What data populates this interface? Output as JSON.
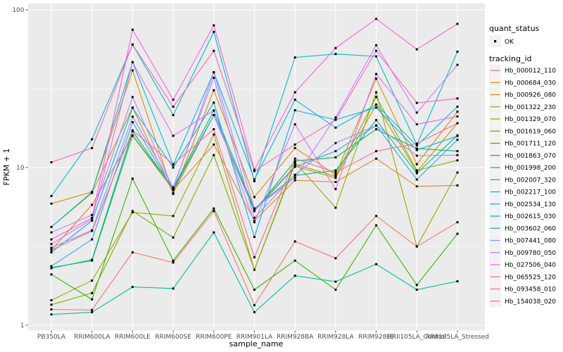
{
  "chart_data": {
    "type": "line",
    "title": "",
    "xlabel": "sample_name",
    "ylabel": "FPKM + 1",
    "y_scale": "log10",
    "ylim": [
      1,
      100
    ],
    "y_ticks": [
      1,
      10,
      100
    ],
    "y_minor_breaks": [
      3.1623,
      31.623
    ],
    "grid": true,
    "panel_bg": "#EBEBEB",
    "grid_color": "#FFFFFF",
    "axis_text_color": "#4D4D4D",
    "axis_title_color": "#000000",
    "point_color": "#000000",
    "legend_key_bg": "#F2F2F2",
    "legend_position": "right",
    "categories": [
      "PB350LA",
      "RRIM600LA",
      "RRIM600LE",
      "RRIM600SE",
      "RRIM600PE",
      "RRIM901LA",
      "RRIM928BA",
      "RRIM928LA",
      "RRIM928LE",
      "RRII105LA_Control",
      "RRII105LA_Stressed"
    ],
    "legend": {
      "quant_status_title": "quant_status",
      "quant_entries": [
        "OK"
      ],
      "tracking_title": "tracking_id"
    },
    "series": [
      {
        "name": "Hb_000012_110",
        "color": "#F8766D",
        "values": [
          1.26,
          1.25,
          2.9,
          2.5,
          5.3,
          1.34,
          3.4,
          2.66,
          4.93,
          3.16,
          4.5
        ]
      },
      {
        "name": "Hb_000684_030",
        "color": "#EA8331",
        "values": [
          3.0,
          5.8,
          15.9,
          7.2,
          14.0,
          4.6,
          8.3,
          8.1,
          11.4,
          7.6,
          7.7
        ]
      },
      {
        "name": "Hb_000926_080",
        "color": "#D89000",
        "values": [
          5.9,
          7.0,
          41.3,
          6.8,
          30.9,
          6.5,
          13.3,
          9.0,
          36.6,
          10.5,
          22.6
        ]
      },
      {
        "name": "Hb_001322_230",
        "color": "#C09B00",
        "values": [
          4.2,
          6.9,
          24.0,
          6.9,
          21.5,
          5.4,
          10.2,
          8.6,
          25.1,
          9.4,
          19.1
        ]
      },
      {
        "name": "Hb_001329_070",
        "color": "#A3A500",
        "values": [
          1.44,
          1.92,
          5.2,
          4.93,
          16.2,
          2.25,
          10.8,
          5.56,
          30.0,
          3.16,
          9.3
        ]
      },
      {
        "name": "Hb_001619_060",
        "color": "#7CAE00",
        "values": [
          1.35,
          1.6,
          5.3,
          3.6,
          12.0,
          2.25,
          10.5,
          8.8,
          28.0,
          9.6,
          11.1
        ]
      },
      {
        "name": "Hb_001711_120",
        "color": "#39B600",
        "values": [
          2.1,
          1.46,
          8.5,
          2.57,
          5.5,
          1.68,
          2.57,
          1.68,
          4.3,
          1.8,
          3.8
        ]
      },
      {
        "name": "Hb_001863_070",
        "color": "#00BB4E",
        "values": [
          2.3,
          2.6,
          17.0,
          7.3,
          21.5,
          5.3,
          11.0,
          11.6,
          17.5,
          13.2,
          12.7
        ]
      },
      {
        "name": "Hb_001998_200",
        "color": "#00BF7D",
        "values": [
          2.32,
          2.57,
          16.0,
          7.4,
          23.0,
          5.5,
          8.9,
          9.6,
          20.0,
          9.2,
          16.0
        ]
      },
      {
        "name": "Hb_002007_320",
        "color": "#00C1A3",
        "values": [
          1.17,
          1.21,
          1.75,
          1.71,
          3.88,
          1.21,
          2.06,
          1.89,
          2.44,
          1.68,
          1.9
        ]
      },
      {
        "name": "Hb_002217_100",
        "color": "#00BFC4",
        "values": [
          6.6,
          15.1,
          60.3,
          21.5,
          72.6,
          8.2,
          49.9,
          52.5,
          50.7,
          14.0,
          54.3
        ]
      },
      {
        "name": "Hb_002534_130",
        "color": "#00BAE0",
        "values": [
          4.2,
          7.0,
          46.6,
          10.4,
          40.2,
          8.4,
          26.9,
          17.9,
          25.1,
          13.8,
          24.3
        ]
      },
      {
        "name": "Hb_002615_030",
        "color": "#00B0F6",
        "values": [
          2.9,
          4.6,
          23.9,
          10.0,
          25.8,
          3.63,
          23.1,
          20.1,
          24.0,
          12.9,
          15.85
        ]
      },
      {
        "name": "Hb_003602_060",
        "color": "#35A2FF",
        "values": [
          2.37,
          3.5,
          19.4,
          7.2,
          21.5,
          5.3,
          10.1,
          12.7,
          18.5,
          8.4,
          15.0
        ]
      },
      {
        "name": "Hb_007441_080",
        "color": "#9590FF",
        "values": [
          3.1,
          4.0,
          21.0,
          7.5,
          37.1,
          4.8,
          9.0,
          14.3,
          18.5,
          11.9,
          12.0
        ]
      },
      {
        "name": "Hb_009780_050",
        "color": "#C77CFF",
        "values": [
          3.88,
          5.0,
          28.0,
          7.3,
          40.2,
          5.5,
          8.6,
          20.8,
          59.6,
          22.3,
          44.8
        ]
      },
      {
        "name": "Hb_027506_040",
        "color": "#E76BF3",
        "values": [
          3.27,
          4.7,
          46.6,
          15.9,
          23.0,
          4.5,
          18.8,
          7.3,
          39.2,
          18.8,
          21.1
        ]
      },
      {
        "name": "Hb_065525_120",
        "color": "#FA62DB",
        "values": [
          3.5,
          4.8,
          74.8,
          26.9,
          79.8,
          9.7,
          30.0,
          57.2,
          87.7,
          56.2,
          81.5
        ]
      },
      {
        "name": "Hb_093458_010",
        "color": "#FF62BC",
        "values": [
          10.8,
          13.3,
          60.3,
          24.3,
          55.0,
          9.5,
          14.0,
          20.1,
          55.0,
          25.7,
          27.4
        ]
      },
      {
        "name": "Hb_154038_020",
        "color": "#FF6A98",
        "values": [
          3.0,
          3.96,
          17.2,
          10.5,
          17.5,
          2.7,
          11.4,
          9.3,
          12.7,
          14.2,
          19.1
        ]
      }
    ]
  }
}
